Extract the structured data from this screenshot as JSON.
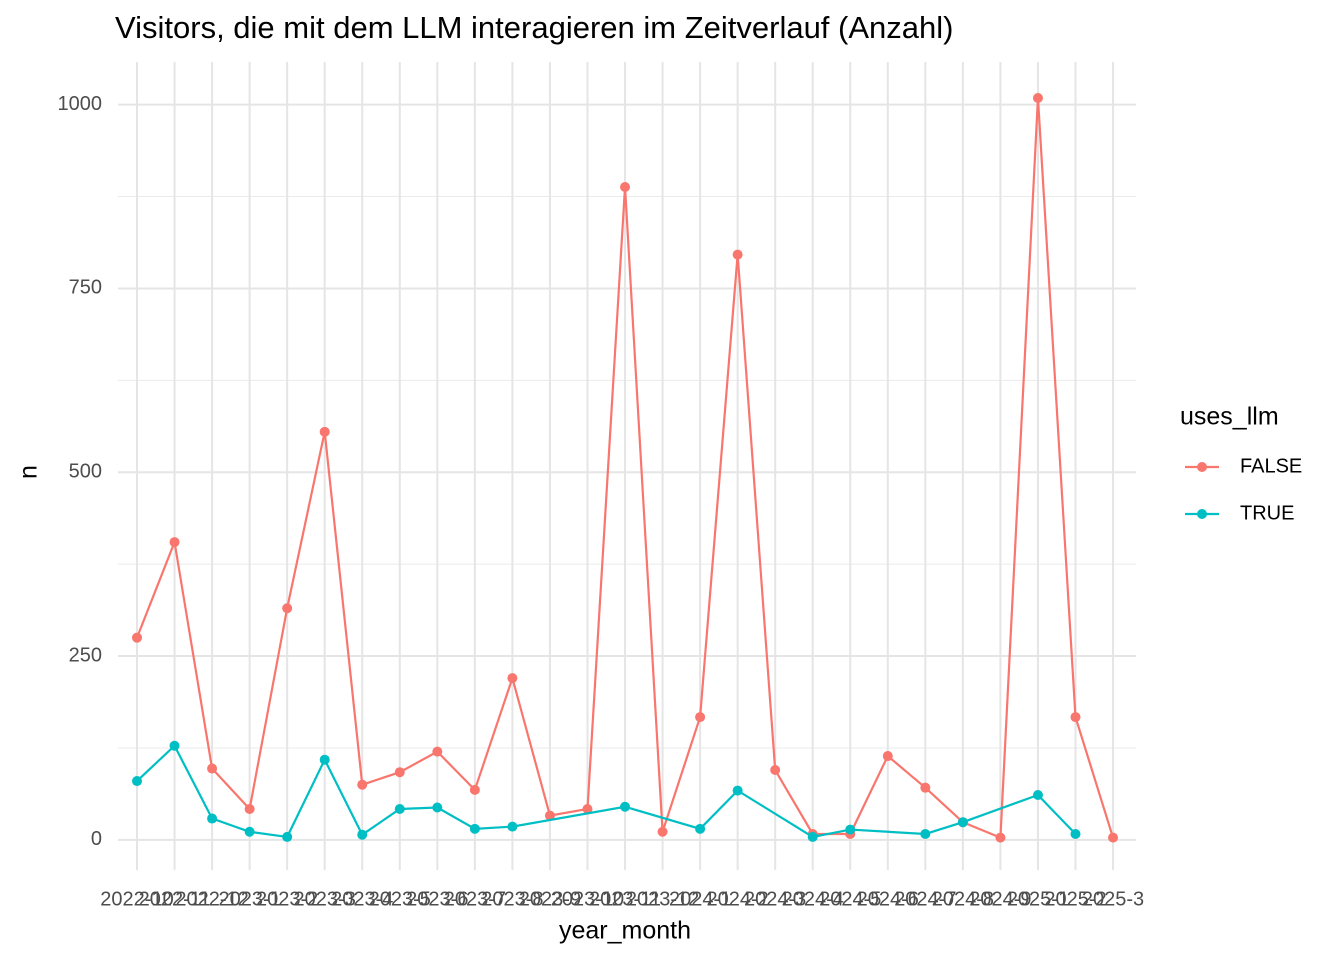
{
  "chart_data": {
    "type": "line",
    "title": "Visitors, die mit dem LLM interagieren im Zeitverlauf (Anzahl)",
    "x_label": "year_month",
    "y_label": "n",
    "categories": [
      "2022-10",
      "2022-11",
      "2022-12",
      "2023-1",
      "2023-2",
      "2023-3",
      "2023-4",
      "2023-5",
      "2023-6",
      "2023-7",
      "2023-8",
      "2023-9",
      "2023-10",
      "2023-11",
      "2023-12",
      "2024-1",
      "2024-2",
      "2024-3",
      "2024-4",
      "2024-5",
      "2024-6",
      "2024-7",
      "2024-8",
      "2024-9",
      "2025-1",
      "2025-2",
      "2025-3"
    ],
    "legend_title": "uses_llm",
    "series": [
      {
        "name": "FALSE",
        "color": "#F8766D",
        "x": [
          "2022-10",
          "2022-11",
          "2022-12",
          "2023-1",
          "2023-2",
          "2023-3",
          "2023-4",
          "2023-5",
          "2023-6",
          "2023-7",
          "2023-8",
          "2023-9",
          "2023-10",
          "2023-11",
          "2023-12",
          "2024-1",
          "2024-2",
          "2024-3",
          "2024-4",
          "2024-5",
          "2024-6",
          "2024-7",
          "2024-8",
          "2024-9",
          "2025-1",
          "2025-2",
          "2025-3"
        ],
        "values": [
          275,
          405,
          97,
          42,
          315,
          555,
          75,
          92,
          120,
          68,
          220,
          33,
          42,
          888,
          11,
          167,
          796,
          95,
          8,
          8,
          114,
          71,
          24,
          3,
          1009,
          167,
          3
        ]
      },
      {
        "name": "TRUE",
        "color": "#00BFC4",
        "x": [
          "2022-10",
          "2022-11",
          "2022-12",
          "2023-1",
          "2023-2",
          "2023-3",
          "2023-4",
          "2023-5",
          "2023-6",
          "2023-7",
          "2023-8",
          "2023-11",
          "2024-1",
          "2024-2",
          "2024-4",
          "2024-5",
          "2024-7",
          "2024-8",
          "2025-1",
          "2025-2"
        ],
        "values": [
          80,
          128,
          29,
          11,
          4,
          109,
          7,
          42,
          44,
          15,
          18,
          45,
          15,
          67,
          4,
          14,
          8,
          24,
          61,
          8
        ]
      }
    ],
    "ylim": [
      -41,
      1058
    ],
    "yticks": [
      0,
      250,
      500,
      750,
      1000
    ],
    "grid": true,
    "legend": "right"
  }
}
